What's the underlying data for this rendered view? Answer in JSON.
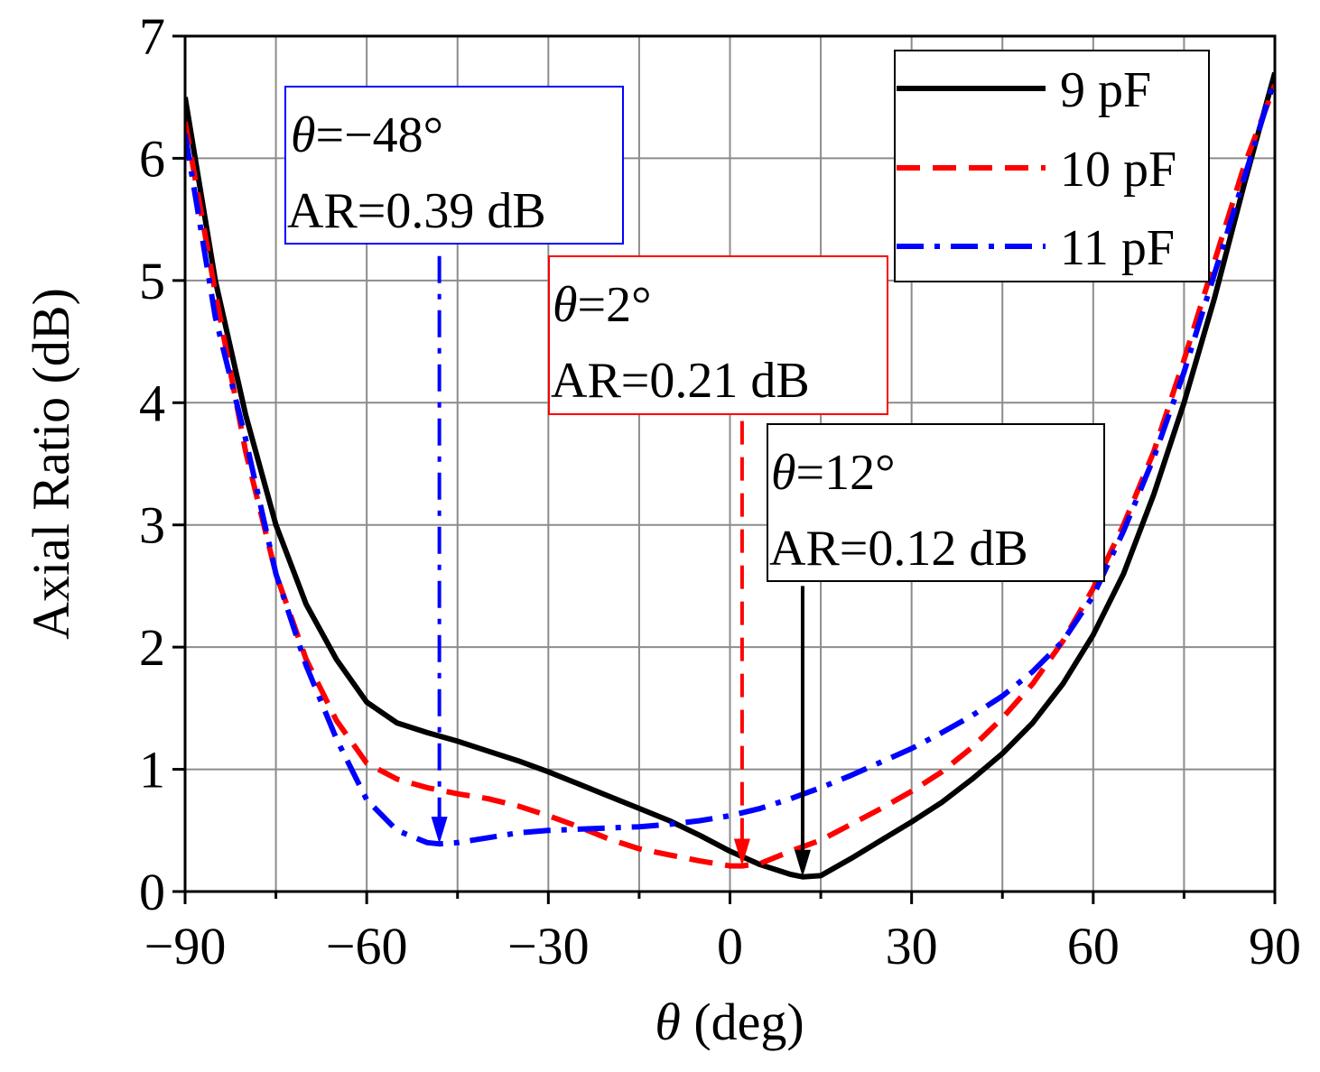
{
  "chart_data": {
    "type": "line",
    "xlabel_symbol": "θ",
    "xlabel_unit": " (deg)",
    "ylabel": "Axial Ratio (dB)",
    "xlim": [
      -90,
      90
    ],
    "ylim": [
      0,
      7
    ],
    "xticks": [
      -90,
      -60,
      -30,
      0,
      30,
      60,
      90
    ],
    "xtick_labels": [
      "−90",
      "−60",
      "−30",
      "0",
      "30",
      "60",
      "90"
    ],
    "yticks": [
      0,
      1,
      2,
      3,
      4,
      5,
      6,
      7
    ],
    "ytick_labels": [
      "0",
      "1",
      "2",
      "3",
      "4",
      "5",
      "6",
      "7"
    ],
    "grid": true,
    "legend_position": "top-right",
    "series": [
      {
        "name": "9 pF",
        "color": "#000000",
        "style": "solid",
        "x": [
          -90,
          -85,
          -80,
          -75,
          -70,
          -65,
          -60,
          -55,
          -50,
          -45,
          -40,
          -35,
          -30,
          -25,
          -20,
          -15,
          -10,
          -5,
          0,
          5,
          10,
          12,
          15,
          20,
          25,
          30,
          35,
          40,
          45,
          50,
          55,
          60,
          65,
          70,
          75,
          80,
          85,
          90
        ],
        "y": [
          6.5,
          5.0,
          3.9,
          3.0,
          2.35,
          1.9,
          1.55,
          1.38,
          1.3,
          1.23,
          1.15,
          1.07,
          0.98,
          0.88,
          0.78,
          0.68,
          0.58,
          0.46,
          0.33,
          0.22,
          0.14,
          0.12,
          0.13,
          0.27,
          0.42,
          0.57,
          0.73,
          0.92,
          1.13,
          1.38,
          1.7,
          2.1,
          2.6,
          3.25,
          4.0,
          4.85,
          5.8,
          6.7
        ]
      },
      {
        "name": "10 pF",
        "color": "#ff0000",
        "style": "dashed",
        "x": [
          -90,
          -85,
          -80,
          -75,
          -70,
          -65,
          -60,
          -55,
          -50,
          -45,
          -40,
          -35,
          -30,
          -25,
          -20,
          -15,
          -10,
          -5,
          0,
          2,
          5,
          10,
          15,
          20,
          25,
          30,
          35,
          40,
          45,
          50,
          55,
          60,
          65,
          70,
          75,
          80,
          85,
          90
        ],
        "y": [
          6.3,
          4.9,
          3.6,
          2.6,
          1.9,
          1.4,
          1.05,
          0.92,
          0.85,
          0.8,
          0.76,
          0.7,
          0.62,
          0.53,
          0.43,
          0.35,
          0.3,
          0.25,
          0.21,
          0.21,
          0.23,
          0.33,
          0.42,
          0.55,
          0.68,
          0.82,
          0.98,
          1.18,
          1.42,
          1.7,
          2.05,
          2.48,
          3.0,
          3.6,
          4.35,
          5.15,
          5.95,
          6.6
        ]
      },
      {
        "name": "11 pF",
        "color": "#0000ff",
        "style": "dashdot",
        "x": [
          -90,
          -85,
          -80,
          -75,
          -70,
          -65,
          -60,
          -55,
          -50,
          -48,
          -45,
          -40,
          -35,
          -30,
          -25,
          -20,
          -15,
          -10,
          -5,
          0,
          5,
          10,
          15,
          20,
          25,
          30,
          35,
          40,
          45,
          50,
          55,
          60,
          65,
          70,
          75,
          80,
          85,
          90
        ],
        "y": [
          6.2,
          4.7,
          3.7,
          2.6,
          1.85,
          1.25,
          0.75,
          0.5,
          0.4,
          0.39,
          0.4,
          0.44,
          0.48,
          0.5,
          0.51,
          0.52,
          0.53,
          0.55,
          0.58,
          0.62,
          0.68,
          0.76,
          0.85,
          0.95,
          1.06,
          1.17,
          1.3,
          1.44,
          1.6,
          1.8,
          2.05,
          2.42,
          2.95,
          3.55,
          4.25,
          5.05,
          5.85,
          6.65
        ]
      }
    ],
    "annotations": [
      {
        "color": "#0000ff",
        "style": "dashdot",
        "theta_value": "=−48°",
        "ar_text": "AR=0.39 dB",
        "target_x": -48,
        "target_y": 0.39,
        "start_y": 5.2
      },
      {
        "color": "#ff0000",
        "style": "dashed",
        "theta_value": "=2°",
        "ar_text": "AR=0.21 dB",
        "target_x": 2,
        "target_y": 0.21,
        "start_y": 3.85
      },
      {
        "color": "#000000",
        "style": "solid",
        "theta_value": "=12°",
        "ar_text": "AR=0.12 dB",
        "target_x": 12,
        "target_y": 0.12,
        "start_y": 2.5
      }
    ],
    "theta_symbol": "θ"
  }
}
